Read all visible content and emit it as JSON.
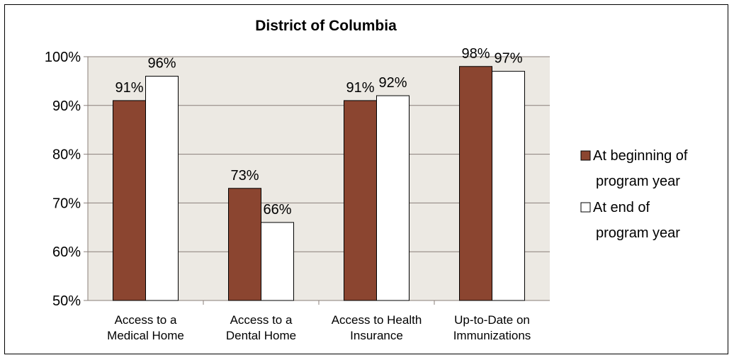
{
  "chart_data": {
    "type": "bar",
    "title": "District of Columbia",
    "categories": [
      [
        "Access to a",
        "Medical Home"
      ],
      [
        "Access to a",
        "Dental Home"
      ],
      [
        "Access to Health",
        "Insurance"
      ],
      [
        "Up-to-Date on",
        "Immunizations"
      ]
    ],
    "series": [
      {
        "name": "At beginning of program year",
        "legend_lines": [
          "At beginning of",
          "program year"
        ],
        "values": [
          91,
          73,
          91,
          98
        ],
        "labels": [
          "91%",
          "73%",
          "91%",
          "98%"
        ],
        "color": "#8b4530"
      },
      {
        "name": "At end of program year",
        "legend_lines": [
          "At end of",
          "program year"
        ],
        "values": [
          96,
          66,
          92,
          97
        ],
        "labels": [
          "96%",
          "66%",
          "92%",
          "97%"
        ],
        "color": "#ffffff"
      }
    ],
    "ylim": [
      50,
      100
    ],
    "yticks": [
      50,
      60,
      70,
      80,
      90,
      100
    ],
    "ytick_labels": [
      "50%",
      "60%",
      "70%",
      "80%",
      "90%",
      "100%"
    ],
    "plot_background": "#ece9e3",
    "grid": true,
    "legend_position": "right",
    "xlabel": "",
    "ylabel": ""
  }
}
